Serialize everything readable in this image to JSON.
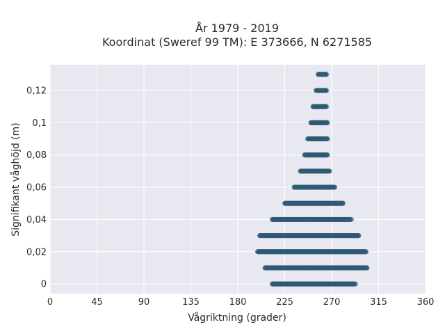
{
  "chart_data": {
    "type": "scatter",
    "title_line1": "År 1979 - 2019",
    "title_line2": "Koordinat (Sweref 99 TM): E 373666, N 6271585",
    "xlabel": "Vågriktning (grader)",
    "ylabel": "Signifikant våghöjd (m)",
    "xlim": [
      0,
      360
    ],
    "ylim": [
      -0.006,
      0.136
    ],
    "x_ticks": [
      {
        "value": 0,
        "label": "0"
      },
      {
        "value": 45,
        "label": "45"
      },
      {
        "value": 90,
        "label": "90"
      },
      {
        "value": 135,
        "label": "135"
      },
      {
        "value": 180,
        "label": "180"
      },
      {
        "value": 225,
        "label": "225"
      },
      {
        "value": 270,
        "label": "270"
      },
      {
        "value": 315,
        "label": "315"
      },
      {
        "value": 360,
        "label": "360"
      }
    ],
    "y_ticks": [
      {
        "value": 0,
        "label": "0"
      },
      {
        "value": 0.02,
        "label": "0,02"
      },
      {
        "value": 0.04,
        "label": "0,04"
      },
      {
        "value": 0.06,
        "label": "0,06"
      },
      {
        "value": 0.08,
        "label": "0,08"
      },
      {
        "value": 0.1,
        "label": "0,1"
      },
      {
        "value": 0.12,
        "label": "0,12"
      }
    ],
    "grid": true,
    "marker_color": "#2e5a73",
    "background_color": "#e8e8f0",
    "bands": [
      {
        "y": 0.0,
        "x_min": 213,
        "x_max": 292
      },
      {
        "y": 0.01,
        "x_min": 206,
        "x_max": 304
      },
      {
        "y": 0.02,
        "x_min": 199,
        "x_max": 303
      },
      {
        "y": 0.03,
        "x_min": 201,
        "x_max": 296
      },
      {
        "y": 0.04,
        "x_min": 213,
        "x_max": 288
      },
      {
        "y": 0.05,
        "x_min": 225,
        "x_max": 281
      },
      {
        "y": 0.06,
        "x_min": 234,
        "x_max": 273
      },
      {
        "y": 0.07,
        "x_min": 240,
        "x_max": 268
      },
      {
        "y": 0.08,
        "x_min": 244,
        "x_max": 266
      },
      {
        "y": 0.09,
        "x_min": 247,
        "x_max": 266
      },
      {
        "y": 0.1,
        "x_min": 250,
        "x_max": 266
      },
      {
        "y": 0.11,
        "x_min": 252,
        "x_max": 265
      },
      {
        "y": 0.12,
        "x_min": 255,
        "x_max": 265
      },
      {
        "y": 0.13,
        "x_min": 257,
        "x_max": 265
      }
    ],
    "outliers": [
      {
        "x": 277,
        "y": 0.0
      },
      {
        "x": 281,
        "y": 0.0
      },
      {
        "x": 293,
        "y": 0.0
      },
      {
        "x": 289,
        "y": 0.04
      }
    ]
  }
}
